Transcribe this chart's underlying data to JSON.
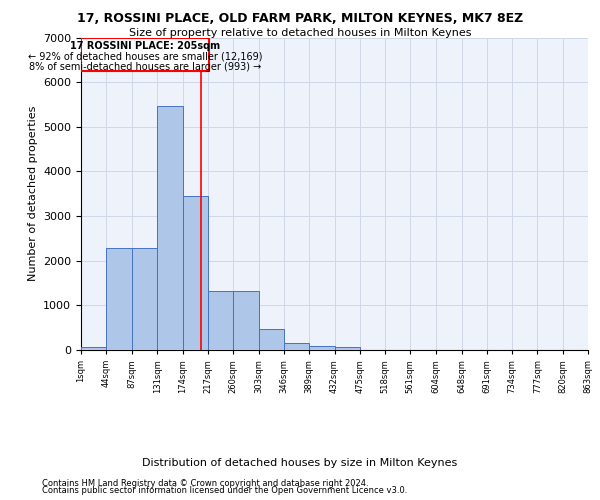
{
  "title_line1": "17, ROSSINI PLACE, OLD FARM PARK, MILTON KEYNES, MK7 8EZ",
  "title_line2": "Size of property relative to detached houses in Milton Keynes",
  "xlabel": "Distribution of detached houses by size in Milton Keynes",
  "ylabel": "Number of detached properties",
  "footer_line1": "Contains HM Land Registry data © Crown copyright and database right 2024.",
  "footer_line2": "Contains public sector information licensed under the Open Government Licence v3.0.",
  "annotation_line1": "17 ROSSINI PLACE: 205sqm",
  "annotation_line2": "← 92% of detached houses are smaller (12,169)",
  "annotation_line3": "8% of semi-detached houses are larger (993) →",
  "bar_values": [
    75,
    2275,
    2275,
    5475,
    3450,
    1325,
    1325,
    475,
    160,
    100,
    65,
    0,
    0,
    0,
    0,
    0,
    0,
    0,
    0,
    0
  ],
  "bin_edges": [
    1,
    44,
    87,
    131,
    174,
    217,
    260,
    303,
    346,
    389,
    432,
    475,
    518,
    561,
    604,
    648,
    691,
    734,
    777,
    820,
    863
  ],
  "tick_labels": [
    "1sqm",
    "44sqm",
    "87sqm",
    "131sqm",
    "174sqm",
    "217sqm",
    "260sqm",
    "303sqm",
    "346sqm",
    "389sqm",
    "432sqm",
    "475sqm",
    "518sqm",
    "561sqm",
    "604sqm",
    "648sqm",
    "691sqm",
    "734sqm",
    "777sqm",
    "820sqm",
    "863sqm"
  ],
  "vline_x": 205,
  "ylim": [
    0,
    7000
  ],
  "bar_color": "#aec6e8",
  "bar_edge_color": "#4472c4",
  "vline_color": "red",
  "annotation_box_color": "red",
  "grid_color": "#d0d8e8",
  "bg_color": "#eef2fa",
  "title_fontsize": 9,
  "subtitle_fontsize": 8,
  "ylabel_fontsize": 8,
  "xlabel_fontsize": 8,
  "tick_fontsize": 6,
  "footer_fontsize": 6,
  "ann_fontsize": 7
}
